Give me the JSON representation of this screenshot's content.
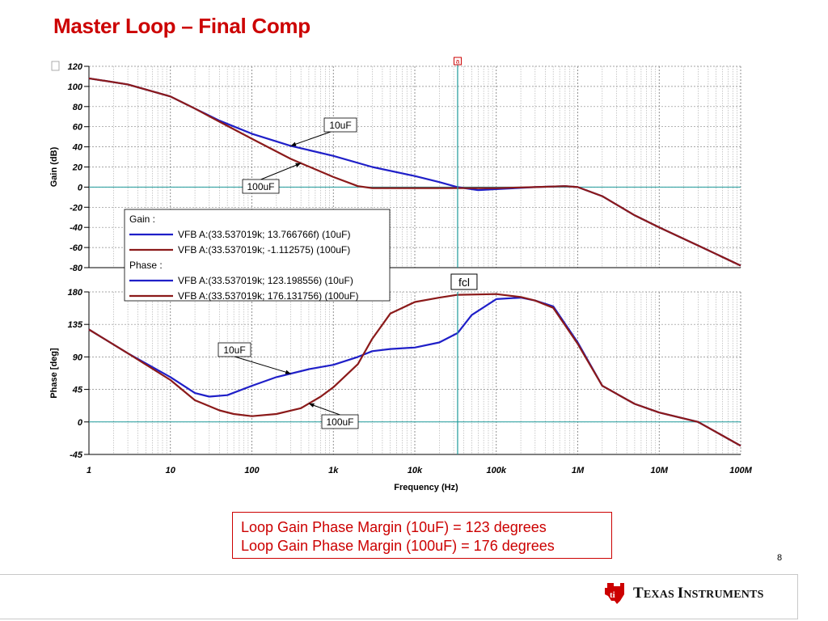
{
  "slide": {
    "title": "Master Loop – Final Comp",
    "page_number": "8",
    "notes": [
      "Loop Gain Phase Margin (10uF) = 123 degrees",
      "Loop Gain Phase Margin (100uF) = 176 degrees"
    ],
    "brand": {
      "name_first_cap": "T",
      "name_first_rest": "EXAS ",
      "name_second_cap": "I",
      "name_second_rest": "NSTRUMENTS",
      "logo_color": "#cc0000"
    }
  },
  "colors": {
    "series_10uF": "#1f1fc8",
    "series_100uF": "#8b1a1a",
    "cursor": "#1e9a9a",
    "title": "#cc0000"
  },
  "chart_data": [
    {
      "type": "line",
      "id": "gain",
      "title": "",
      "xlabel": "",
      "ylabel": "Gain (dB)",
      "xscale": "log",
      "xlim": [
        1,
        100000000
      ],
      "ylim": [
        -80,
        120
      ],
      "yticks": [
        120,
        100,
        80,
        60,
        40,
        20,
        0,
        -20,
        -40,
        -60,
        -80
      ],
      "grid": true,
      "cursor_x": 33537.019,
      "cursor_marker": "a",
      "series": [
        {
          "name": "10uF",
          "color": "#1f1fc8",
          "points": [
            [
              1,
              108
            ],
            [
              3,
              102
            ],
            [
              10,
              90
            ],
            [
              20,
              78
            ],
            [
              40,
              66
            ],
            [
              100,
              53
            ],
            [
              300,
              41
            ],
            [
              1000,
              31
            ],
            [
              3000,
              20
            ],
            [
              10000,
              11
            ],
            [
              20000,
              5
            ],
            [
              33537,
              0
            ],
            [
              60000,
              -3
            ],
            [
              100000,
              -2
            ],
            [
              300000,
              0
            ],
            [
              700000,
              1
            ],
            [
              1000000,
              0
            ],
            [
              2000000,
              -9
            ],
            [
              5000000,
              -28
            ],
            [
              10000000,
              -40
            ],
            [
              30000000,
              -58
            ],
            [
              100000000,
              -78
            ]
          ]
        },
        {
          "name": "100uF",
          "color": "#8b1a1a",
          "points": [
            [
              1,
              108
            ],
            [
              3,
              102
            ],
            [
              10,
              90
            ],
            [
              20,
              78
            ],
            [
              40,
              65
            ],
            [
              100,
              48
            ],
            [
              300,
              28
            ],
            [
              1000,
              10
            ],
            [
              2000,
              1
            ],
            [
              3000,
              -1
            ],
            [
              10000,
              -1
            ],
            [
              33537,
              -1
            ],
            [
              100000,
              -1
            ],
            [
              300000,
              0
            ],
            [
              700000,
              1
            ],
            [
              1000000,
              0
            ],
            [
              2000000,
              -9
            ],
            [
              5000000,
              -28
            ],
            [
              10000000,
              -40
            ],
            [
              30000000,
              -58
            ],
            [
              100000000,
              -78
            ]
          ]
        }
      ],
      "annotations": [
        {
          "text": "10uF",
          "series": "10uF",
          "at": 300
        },
        {
          "text": "100uF",
          "series": "100uF",
          "at": 400
        }
      ]
    },
    {
      "type": "line",
      "id": "phase",
      "title": "",
      "xlabel": "Frequency (Hz)",
      "ylabel": "Phase [deg]",
      "xscale": "log",
      "xlim": [
        1,
        100000000
      ],
      "ylim": [
        -45,
        180
      ],
      "yticks": [
        180,
        135,
        90,
        45,
        0,
        -45
      ],
      "xticklabels": [
        "1",
        "10",
        "100",
        "1k",
        "10k",
        "100k",
        "1M",
        "10M",
        "100M"
      ],
      "grid": true,
      "cursor_x": 33537.019,
      "cursor_label": "fcl",
      "series": [
        {
          "name": "10uF",
          "color": "#1f1fc8",
          "points": [
            [
              1,
              128
            ],
            [
              3,
              95
            ],
            [
              10,
              62
            ],
            [
              20,
              40
            ],
            [
              30,
              35
            ],
            [
              50,
              37
            ],
            [
              100,
              50
            ],
            [
              200,
              62
            ],
            [
              500,
              73
            ],
            [
              1000,
              79
            ],
            [
              2000,
              90
            ],
            [
              3000,
              98
            ],
            [
              5000,
              101
            ],
            [
              10000,
              103
            ],
            [
              20000,
              110
            ],
            [
              33537,
              123
            ],
            [
              50000,
              148
            ],
            [
              100000,
              170
            ],
            [
              200000,
              172
            ],
            [
              300000,
              168
            ],
            [
              500000,
              160
            ],
            [
              1000000,
              110
            ],
            [
              2000000,
              50
            ],
            [
              5000000,
              25
            ],
            [
              10000000,
              13
            ],
            [
              30000000,
              0
            ],
            [
              100000000,
              -33
            ]
          ]
        },
        {
          "name": "100uF",
          "color": "#8b1a1a",
          "points": [
            [
              1,
              128
            ],
            [
              3,
              95
            ],
            [
              10,
              58
            ],
            [
              20,
              30
            ],
            [
              40,
              16
            ],
            [
              60,
              11
            ],
            [
              100,
              8
            ],
            [
              200,
              11
            ],
            [
              400,
              19
            ],
            [
              700,
              35
            ],
            [
              1000,
              48
            ],
            [
              2000,
              80
            ],
            [
              3000,
              115
            ],
            [
              5000,
              150
            ],
            [
              10000,
              166
            ],
            [
              20000,
              172
            ],
            [
              33537,
              176
            ],
            [
              100000,
              177
            ],
            [
              200000,
              173
            ],
            [
              300000,
              168
            ],
            [
              500000,
              158
            ],
            [
              1000000,
              108
            ],
            [
              2000000,
              50
            ],
            [
              5000000,
              25
            ],
            [
              10000000,
              13
            ],
            [
              30000000,
              0
            ],
            [
              100000000,
              -33
            ]
          ]
        }
      ],
      "annotations": [
        {
          "text": "10uF",
          "series": "10uF",
          "at": 300
        },
        {
          "text": "100uF",
          "series": "100uF",
          "at": 500
        }
      ]
    }
  ],
  "legend": {
    "groups": [
      {
        "heading": "Gain :",
        "entries": [
          {
            "text": "VFB   A:(33.537019k; 13.766766f) (10uF)",
            "color": "#1f1fc8"
          },
          {
            "text": "VFB   A:(33.537019k; -1.112575) (100uF)",
            "color": "#8b1a1a"
          }
        ]
      },
      {
        "heading": "Phase :",
        "entries": [
          {
            "text": "VFB   A:(33.537019k; 123.198556) (10uF)",
            "color": "#1f1fc8"
          },
          {
            "text": "VFB   A:(33.537019k; 176.131756) (100uF)",
            "color": "#8b1a1a"
          }
        ]
      }
    ]
  }
}
